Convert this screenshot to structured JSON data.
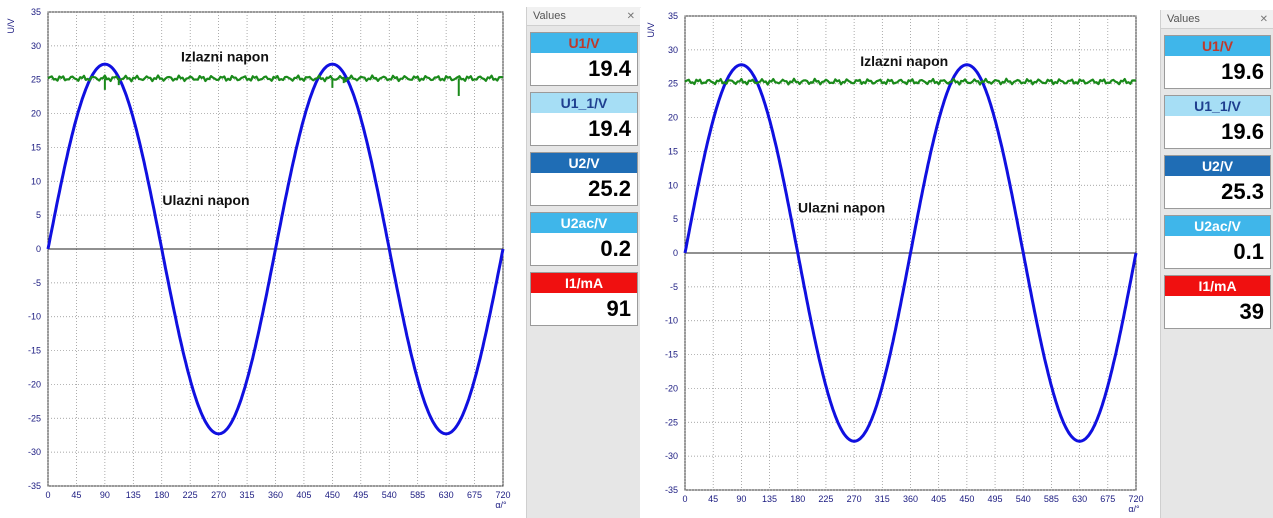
{
  "panels": [
    {
      "values_panel": {
        "header": "Values",
        "close_icon": "close-icon",
        "items": [
          {
            "label": "U1/V",
            "value": "19.4",
            "color": "#3fb6ea",
            "label_color": "#c0392b"
          },
          {
            "label": "U1_1/V",
            "value": "19.4",
            "color": "#a6def5",
            "label_color": "#1f3f8f"
          },
          {
            "label": "U2/V",
            "value": "25.2",
            "color": "#1f6db5",
            "label_color": "#ffffff"
          },
          {
            "label": "U2ac/V",
            "value": "0.2",
            "color": "#3fb6ea",
            "label_color": "#ffffff"
          },
          {
            "label": "I1/mA",
            "value": "91",
            "color": "#f01010",
            "label_color": "#ffffff"
          }
        ]
      }
    },
    {
      "values_panel": {
        "header": "Values",
        "close_icon": "close-icon",
        "items": [
          {
            "label": "U1/V",
            "value": "19.6",
            "color": "#3fb6ea",
            "label_color": "#c0392b"
          },
          {
            "label": "U1_1/V",
            "value": "19.6",
            "color": "#a6def5",
            "label_color": "#1f3f8f"
          },
          {
            "label": "U2/V",
            "value": "25.3",
            "color": "#1f6db5",
            "label_color": "#ffffff"
          },
          {
            "label": "U2ac/V",
            "value": "0.1",
            "color": "#3fb6ea",
            "label_color": "#ffffff"
          },
          {
            "label": "I1/mA",
            "value": "39",
            "color": "#f01010",
            "label_color": "#ffffff"
          }
        ]
      }
    }
  ],
  "chart_data": [
    {
      "type": "line",
      "ylabel": "U/V",
      "xlabel": "α/°",
      "xlim": [
        0,
        720
      ],
      "ylim": [
        -35,
        35
      ],
      "x_ticks": [
        0,
        45,
        90,
        135,
        180,
        225,
        270,
        315,
        360,
        405,
        450,
        495,
        540,
        585,
        630,
        675,
        720
      ],
      "y_ticks": [
        35,
        30,
        25,
        20,
        15,
        10,
        5,
        0,
        -5,
        -10,
        -15,
        -20,
        -25,
        -30,
        -35
      ],
      "grid": true,
      "series": [
        {
          "name": "Ulazni napon",
          "color": "#1010e0",
          "shape": "sine",
          "amplitude": 27.3,
          "x": [
            0,
            90,
            180,
            270,
            360,
            450,
            540,
            630,
            720
          ],
          "y": [
            0,
            27.3,
            0,
            -27.3,
            0,
            27.3,
            0,
            -27.3,
            0
          ]
        },
        {
          "name": "Izlazni napon",
          "color": "#1a8a1a",
          "shape": "flat",
          "x": [
            0,
            720
          ],
          "y": [
            25.2,
            25.2
          ],
          "glitches": [
            [
              90,
              23.5
            ],
            [
              112,
              24.2
            ],
            [
              450,
              23.8
            ],
            [
              468,
              24.5
            ],
            [
              650,
              22.6
            ]
          ]
        }
      ],
      "annotations": [
        {
          "text": "Izlazni napon",
          "x": 280,
          "y": 27.7
        },
        {
          "text": "Ulazni napon",
          "x": 250,
          "y": 6.5
        }
      ]
    },
    {
      "type": "line",
      "ylabel": "U/V",
      "xlabel": "α/°",
      "xlim": [
        0,
        720
      ],
      "ylim": [
        -35,
        35
      ],
      "x_ticks": [
        0,
        45,
        90,
        135,
        180,
        225,
        270,
        315,
        360,
        405,
        450,
        495,
        540,
        585,
        630,
        675,
        720
      ],
      "y_ticks": [
        35,
        30,
        25,
        20,
        15,
        10,
        5,
        0,
        -5,
        -10,
        -15,
        -20,
        -25,
        -30,
        -35
      ],
      "grid": true,
      "series": [
        {
          "name": "Ulazni napon",
          "color": "#1010e0",
          "shape": "sine",
          "amplitude": 27.8,
          "x": [
            0,
            90,
            180,
            270,
            360,
            450,
            540,
            630,
            720
          ],
          "y": [
            0,
            27.8,
            0,
            -27.8,
            0,
            27.8,
            0,
            -27.8,
            0
          ]
        },
        {
          "name": "Izlazni napon",
          "color": "#1a8a1a",
          "shape": "flat",
          "x": [
            0,
            720
          ],
          "y": [
            25.3,
            25.3
          ],
          "glitches": []
        }
      ],
      "annotations": [
        {
          "text": "Izlazni napon",
          "x": 350,
          "y": 27.6
        },
        {
          "text": "Ulazni napon",
          "x": 250,
          "y": 6.0
        }
      ]
    }
  ]
}
